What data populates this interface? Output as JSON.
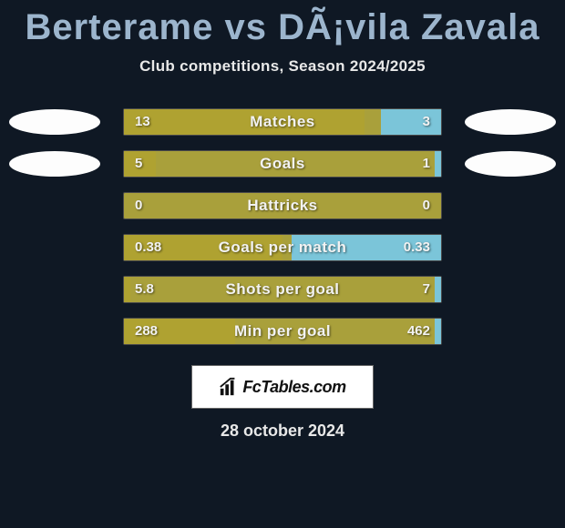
{
  "title": "Berterame vs DÃ¡vila Zavala",
  "subtitle": "Club competitions, Season 2024/2025",
  "date": "28 october 2024",
  "logo_text": "FcTables.com",
  "colors": {
    "background": "#0f1824",
    "title": "#9cb5cd",
    "text": "#e8e8e8",
    "track": "#a9a03b",
    "left_fill": "#afa231",
    "right_fill": "#7bc5d9",
    "left_highlight": "#b2a635",
    "right_highlight": "#7fc8dc",
    "oval": "#fdfdfd",
    "logo_bg": "#ffffff",
    "border": "#4a4a4a"
  },
  "stats": [
    {
      "label": "Matches",
      "left_display": "13",
      "right_display": "3",
      "left_val": 13,
      "right_val": 3,
      "left_pct": 76,
      "right_pct": 19,
      "show_ovals": true
    },
    {
      "label": "Goals",
      "left_display": "5",
      "right_display": "1",
      "left_val": 5,
      "right_val": 1,
      "left_pct": 10,
      "right_pct": 2,
      "show_ovals": true
    },
    {
      "label": "Hattricks",
      "left_display": "0",
      "right_display": "0",
      "left_val": 0,
      "right_val": 0,
      "left_pct": 0,
      "right_pct": 0,
      "show_ovals": false
    },
    {
      "label": "Goals per match",
      "left_display": "0.38",
      "right_display": "0.33",
      "left_val": 0.38,
      "right_val": 0.33,
      "left_pct": 50,
      "right_pct": 47,
      "show_ovals": false
    },
    {
      "label": "Shots per goal",
      "left_display": "5.8",
      "right_display": "7",
      "left_val": 5.8,
      "right_val": 7,
      "left_pct": 2,
      "right_pct": 2,
      "show_ovals": false
    },
    {
      "label": "Min per goal",
      "left_display": "288",
      "right_display": "462",
      "left_val": 288,
      "right_val": 462,
      "left_pct": 35,
      "right_pct": 2,
      "show_ovals": false
    }
  ]
}
